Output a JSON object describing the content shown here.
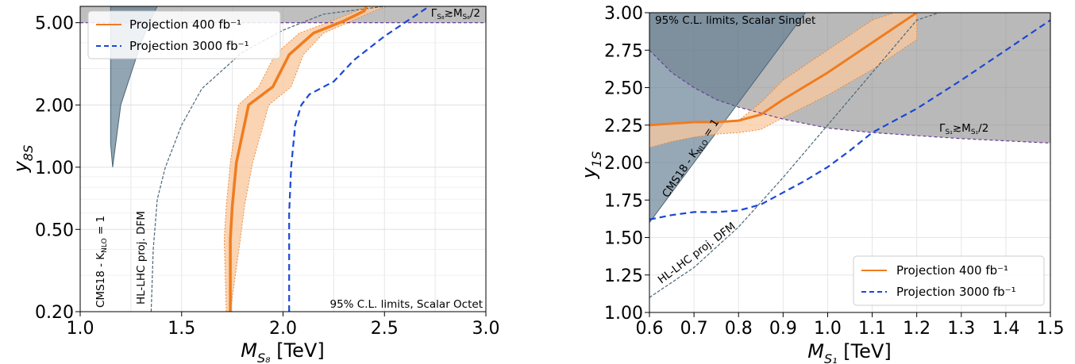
{
  "chart_data": [
    {
      "type": "line",
      "xlim": [
        1.0,
        3.0
      ],
      "ylim": [
        0.2,
        6.0
      ],
      "yscale": "log",
      "grid": true,
      "legend_position": "top-left",
      "xlabel_main": "M",
      "xlabel_sub": "S₈",
      "xlabel_unit": " [TeV]",
      "ylabel_main": "y",
      "ylabel_sub": "8S",
      "x_ticks": [
        1.0,
        1.5,
        2.0,
        2.5,
        3.0
      ],
      "x_tick_labels": [
        "1.0",
        "1.5",
        "2.0",
        "2.5",
        "3.0"
      ],
      "y_ticks": [
        0.2,
        0.5,
        1.0,
        2.0,
        5.0
      ],
      "y_tick_labels": [
        "0.20",
        "0.50",
        "1.00",
        "2.00",
        "5.00"
      ],
      "annotations": {
        "cl_text": "95% C.L. limits, Scalar Octet",
        "width_text": "Γ_S₈≳M_S₈/2",
        "cms_text": "CMS18 - K_NLO = 1",
        "hl_text": "HL-LHC proj. DFM"
      },
      "width_limit_y": 5.0,
      "cms_excluded": {
        "x": [
          1.0,
          1.0,
          1.15,
          1.15,
          1.16,
          1.2,
          1.3,
          1.36,
          1.38
        ],
        "y": [
          0.2,
          6.0,
          6.0,
          1.3,
          1.0,
          2.0,
          4.0,
          5.5,
          6.0
        ]
      },
      "hl_lhc_dfm": {
        "x": [
          1.35,
          1.36,
          1.38,
          1.42,
          1.5,
          1.6,
          1.8,
          2.0,
          2.2,
          2.5
        ],
        "y": [
          0.2,
          0.4,
          0.7,
          1.0,
          1.6,
          2.4,
          3.6,
          4.6,
          5.5,
          6.0
        ]
      },
      "series": [
        {
          "name": "Projection 400 fb⁻¹",
          "color": "#f07c1e",
          "style": "solid",
          "x": [
            1.74,
            1.74,
            1.75,
            1.77,
            1.83,
            1.95,
            2.03,
            2.15,
            2.3,
            2.4,
            2.41
          ],
          "y": [
            0.2,
            0.45,
            0.65,
            1.05,
            2.0,
            2.45,
            3.5,
            4.45,
            5.1,
            5.7,
            6.0
          ],
          "band_lower_x": [
            1.74,
            1.79,
            1.81,
            1.85,
            1.93,
            2.04,
            2.1,
            2.2,
            2.34,
            2.45,
            2.51
          ],
          "band_upper_x": [
            1.72,
            1.71,
            1.72,
            1.74,
            1.78,
            1.88,
            1.96,
            2.08,
            2.24,
            2.36,
            2.4
          ]
        },
        {
          "name": "Projection 3000 fb⁻¹",
          "color": "#1b47d6",
          "style": "dashed",
          "x": [
            2.03,
            2.03,
            2.04,
            2.06,
            2.09,
            2.13,
            2.25,
            2.35,
            2.5,
            2.6,
            2.72
          ],
          "y": [
            0.2,
            0.6,
            1.0,
            1.6,
            2.0,
            2.25,
            2.6,
            3.3,
            4.3,
            5.0,
            6.0
          ]
        }
      ]
    },
    {
      "type": "line",
      "xlim": [
        0.6,
        1.5
      ],
      "ylim": [
        1.0,
        3.0
      ],
      "grid": true,
      "legend_position": "bottom-right",
      "xlabel_main": "M",
      "xlabel_sub": "S₁",
      "xlabel_unit": " [TeV]",
      "ylabel_main": "y",
      "ylabel_sub": "1S",
      "x_ticks": [
        0.6,
        0.7,
        0.8,
        0.9,
        1.0,
        1.1,
        1.2,
        1.3,
        1.4,
        1.5
      ],
      "x_tick_labels": [
        "0.6",
        "0.7",
        "0.8",
        "0.9",
        "1.0",
        "1.1",
        "1.2",
        "1.3",
        "1.4",
        "1.5"
      ],
      "y_ticks": [
        1.0,
        1.25,
        1.5,
        1.75,
        2.0,
        2.25,
        2.5,
        2.75,
        3.0
      ],
      "y_tick_labels": [
        "1.00",
        "1.25",
        "1.50",
        "1.75",
        "2.00",
        "2.25",
        "2.50",
        "2.75",
        "3.00"
      ],
      "annotations": {
        "cl_text": "95% C.L. limits, Scalar Singlet",
        "width_text": "Γ_S₁≳M_S₁/2",
        "cms_text": "CMS18 - K_NLO = 1",
        "hl_text": "HL-LHC proj. DFM"
      },
      "width_limit": {
        "x": [
          0.6,
          0.65,
          0.7,
          0.75,
          0.8,
          0.85,
          0.9,
          0.95,
          1.0,
          1.1,
          1.2,
          1.3,
          1.4,
          1.5
        ],
        "y": [
          2.75,
          2.6,
          2.5,
          2.42,
          2.37,
          2.33,
          2.29,
          2.26,
          2.23,
          2.2,
          2.18,
          2.16,
          2.145,
          2.13
        ]
      },
      "cms_excluded": {
        "x": [
          0.6,
          0.6,
          0.75,
          0.95,
          0.6
        ],
        "y": [
          1.6,
          3.0,
          3.0,
          3.0,
          1.6
        ]
      },
      "hl_lhc_dfm": {
        "x": [
          0.6,
          0.7,
          0.8,
          0.9,
          1.0,
          1.1,
          1.2,
          1.25
        ],
        "y": [
          1.1,
          1.3,
          1.57,
          1.9,
          2.25,
          2.6,
          2.95,
          3.0
        ]
      },
      "series": [
        {
          "name": "Projection 400 fb⁻¹",
          "color": "#f07c1e",
          "style": "solid",
          "x": [
            0.6,
            0.65,
            0.7,
            0.75,
            0.8,
            0.85,
            0.9,
            1.0,
            1.1,
            1.15,
            1.2
          ],
          "y": [
            2.25,
            2.26,
            2.27,
            2.27,
            2.28,
            2.32,
            2.42,
            2.6,
            2.8,
            2.9,
            3.0
          ],
          "band_lower_y": [
            2.1,
            2.14,
            2.17,
            2.19,
            2.2,
            2.22,
            2.3,
            2.45,
            2.62,
            2.72,
            2.82
          ],
          "band_upper_y": [
            2.25,
            2.26,
            2.27,
            2.27,
            2.28,
            2.4,
            2.55,
            2.75,
            2.95,
            3.0,
            3.0
          ]
        },
        {
          "name": "Projection 3000 fb⁻¹",
          "color": "#1b47d6",
          "style": "dashed",
          "x": [
            0.6,
            0.65,
            0.7,
            0.75,
            0.8,
            0.85,
            0.9,
            0.95,
            1.0,
            1.05,
            1.1,
            1.2,
            1.3,
            1.4,
            1.5
          ],
          "y": [
            1.62,
            1.65,
            1.67,
            1.67,
            1.68,
            1.72,
            1.8,
            1.88,
            1.97,
            2.08,
            2.2,
            2.36,
            2.55,
            2.75,
            2.95
          ]
        }
      ]
    }
  ]
}
